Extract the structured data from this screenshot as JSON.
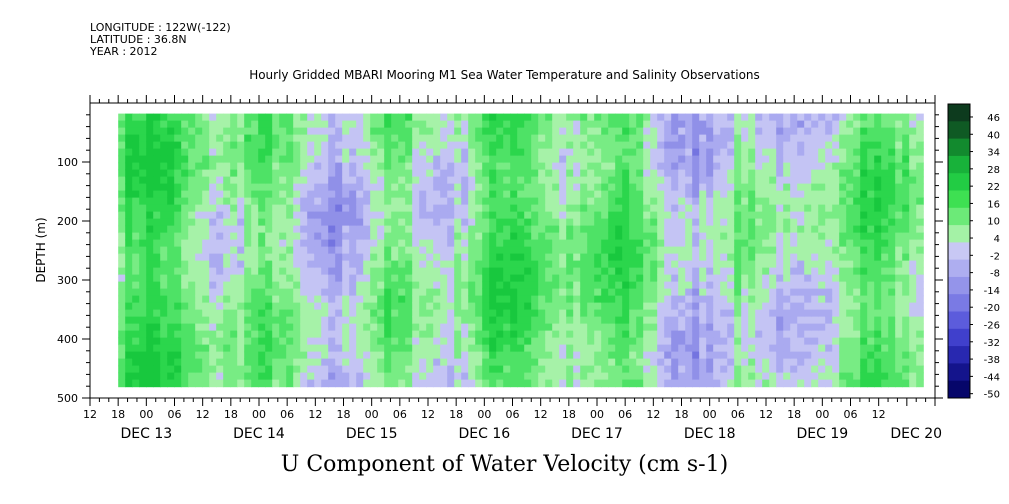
{
  "header": {
    "longitude": "LONGITUDE : 122W(-122)",
    "latitude": "LATITUDE : 36.8N",
    "year": "YEAR : 2012",
    "title": "Hourly Gridded MBARI Mooring M1 Sea Water Temperature and Salinity Observations"
  },
  "chart_data": {
    "type": "heatmap",
    "title": "U Component of Water Velocity (cm s-1)",
    "ylabel": "DEPTH (m)",
    "xlabel": "",
    "y_range": [
      0,
      500
    ],
    "y_inverted": true,
    "y_ticks": [
      100,
      200,
      300,
      400,
      500
    ],
    "x_hour_ticks": [
      "12",
      "18",
      "00",
      "06",
      "12",
      "18",
      "00",
      "06",
      "12",
      "18",
      "00",
      "06",
      "12",
      "18",
      "00",
      "06",
      "12",
      "18",
      "00",
      "06",
      "12",
      "18",
      "00",
      "06",
      "12",
      "18",
      "00",
      "06",
      "12"
    ],
    "x_day_labels": [
      {
        "label": "DEC 13",
        "hour": 12
      },
      {
        "label": "DEC 14",
        "hour": 36
      },
      {
        "label": "DEC 15",
        "hour": 60
      },
      {
        "label": "DEC 16",
        "hour": 84
      },
      {
        "label": "DEC 17",
        "hour": 108
      },
      {
        "label": "DEC 18",
        "hour": 132
      },
      {
        "label": "DEC 19",
        "hour": 156
      },
      {
        "label": "DEC 20",
        "hour": 176
      }
    ],
    "x_range_hours": [
      0,
      180
    ],
    "data_start_hour": 6,
    "colorbar_levels": [
      "46",
      "40",
      "34",
      "28",
      "22",
      "16",
      "10",
      "4",
      "-2",
      "-8",
      "-14",
      "-20",
      "-26",
      "-32",
      "-38",
      "-44",
      "-50"
    ],
    "colorbar_colors": [
      "#0d3b1e",
      "#0f5a24",
      "#128a2e",
      "#18b23a",
      "#22cc44",
      "#3ee052",
      "#6cea78",
      "#a4f2a6",
      "#c8c8f4",
      "#aeaef0",
      "#9494ea",
      "#7a7ae4",
      "#5c5cdc",
      "#4040cc",
      "#2828b0",
      "#14148c",
      "#06066a"
    ],
    "dominant_range": [
      -14,
      22
    ]
  }
}
